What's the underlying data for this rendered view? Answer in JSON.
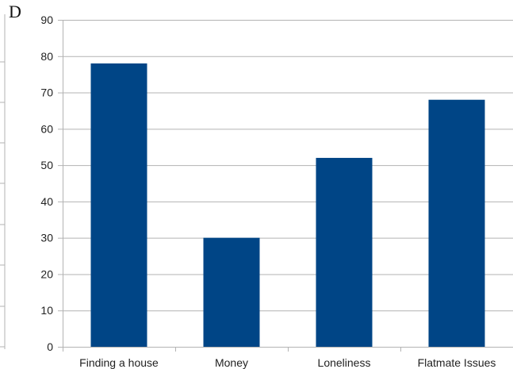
{
  "panel_label": "D",
  "chart_data": {
    "type": "bar",
    "title": "",
    "xlabel": "",
    "ylabel": "",
    "categories": [
      "Finding a house",
      "Money",
      "Loneliness",
      "Flatmate Issues"
    ],
    "values": [
      78,
      30,
      52,
      68
    ],
    "ylim": [
      0,
      90
    ],
    "yticks": [
      0,
      10,
      20,
      30,
      40,
      50,
      60,
      70,
      80,
      90
    ],
    "grid": true,
    "legend": "none",
    "colors": {
      "bar": "#004586",
      "grid": "#b3b3b3",
      "axis": "#b3b3b3"
    }
  }
}
